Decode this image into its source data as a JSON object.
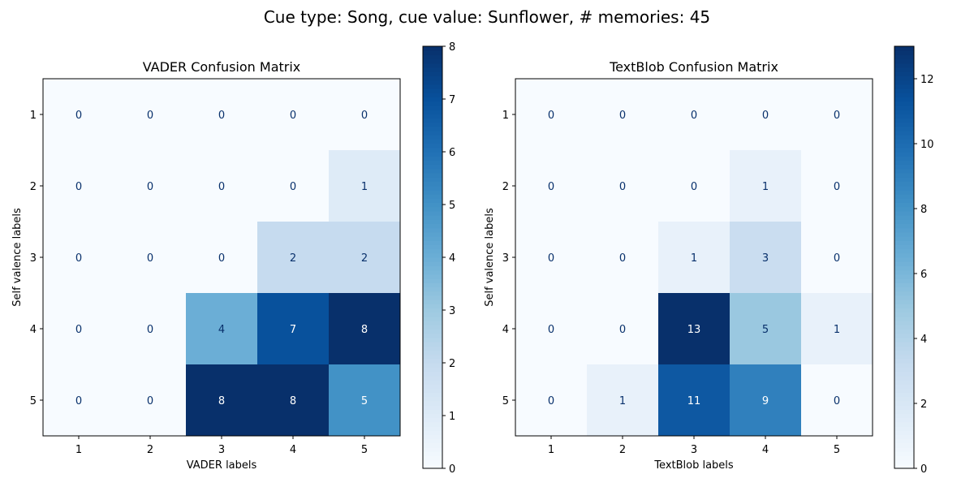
{
  "figure_title": "Cue type: Song, cue value: Sunflower, # memories: 45",
  "colormap": {
    "name": "Blues",
    "light": "#f7fbff",
    "stops": [
      "#f7fbff",
      "#deebf7",
      "#c6dbef",
      "#9ecae1",
      "#6baed6",
      "#4292c6",
      "#2171b5",
      "#08519c",
      "#08306b"
    ],
    "text_dark": "#08306b",
    "text_light": "#ffffff"
  },
  "chart_data": [
    {
      "type": "heatmap",
      "title": "VADER Confusion Matrix",
      "xlabel": "VADER labels",
      "ylabel": "Self valence labels",
      "x_categories": [
        "1",
        "2",
        "3",
        "4",
        "5"
      ],
      "y_categories": [
        "1",
        "2",
        "3",
        "4",
        "5"
      ],
      "values": [
        [
          0,
          0,
          0,
          0,
          0
        ],
        [
          0,
          0,
          0,
          0,
          1
        ],
        [
          0,
          0,
          0,
          2,
          2
        ],
        [
          0,
          0,
          4,
          7,
          8
        ],
        [
          0,
          0,
          8,
          8,
          5
        ]
      ],
      "colorbar": {
        "min": 0,
        "max": 8,
        "ticks": [
          0,
          1,
          2,
          3,
          4,
          5,
          6,
          7,
          8
        ]
      }
    },
    {
      "type": "heatmap",
      "title": "TextBlob Confusion Matrix",
      "xlabel": "TextBlob labels",
      "ylabel": "Self valence labels",
      "x_categories": [
        "1",
        "2",
        "3",
        "4",
        "5"
      ],
      "y_categories": [
        "1",
        "2",
        "3",
        "4",
        "5"
      ],
      "values": [
        [
          0,
          0,
          0,
          0,
          0
        ],
        [
          0,
          0,
          0,
          1,
          0
        ],
        [
          0,
          0,
          1,
          3,
          0
        ],
        [
          0,
          0,
          13,
          5,
          1
        ],
        [
          0,
          1,
          11,
          9,
          0
        ]
      ],
      "colorbar": {
        "min": 0,
        "max": 13,
        "ticks": [
          0,
          2,
          4,
          6,
          8,
          10,
          12
        ]
      }
    }
  ]
}
